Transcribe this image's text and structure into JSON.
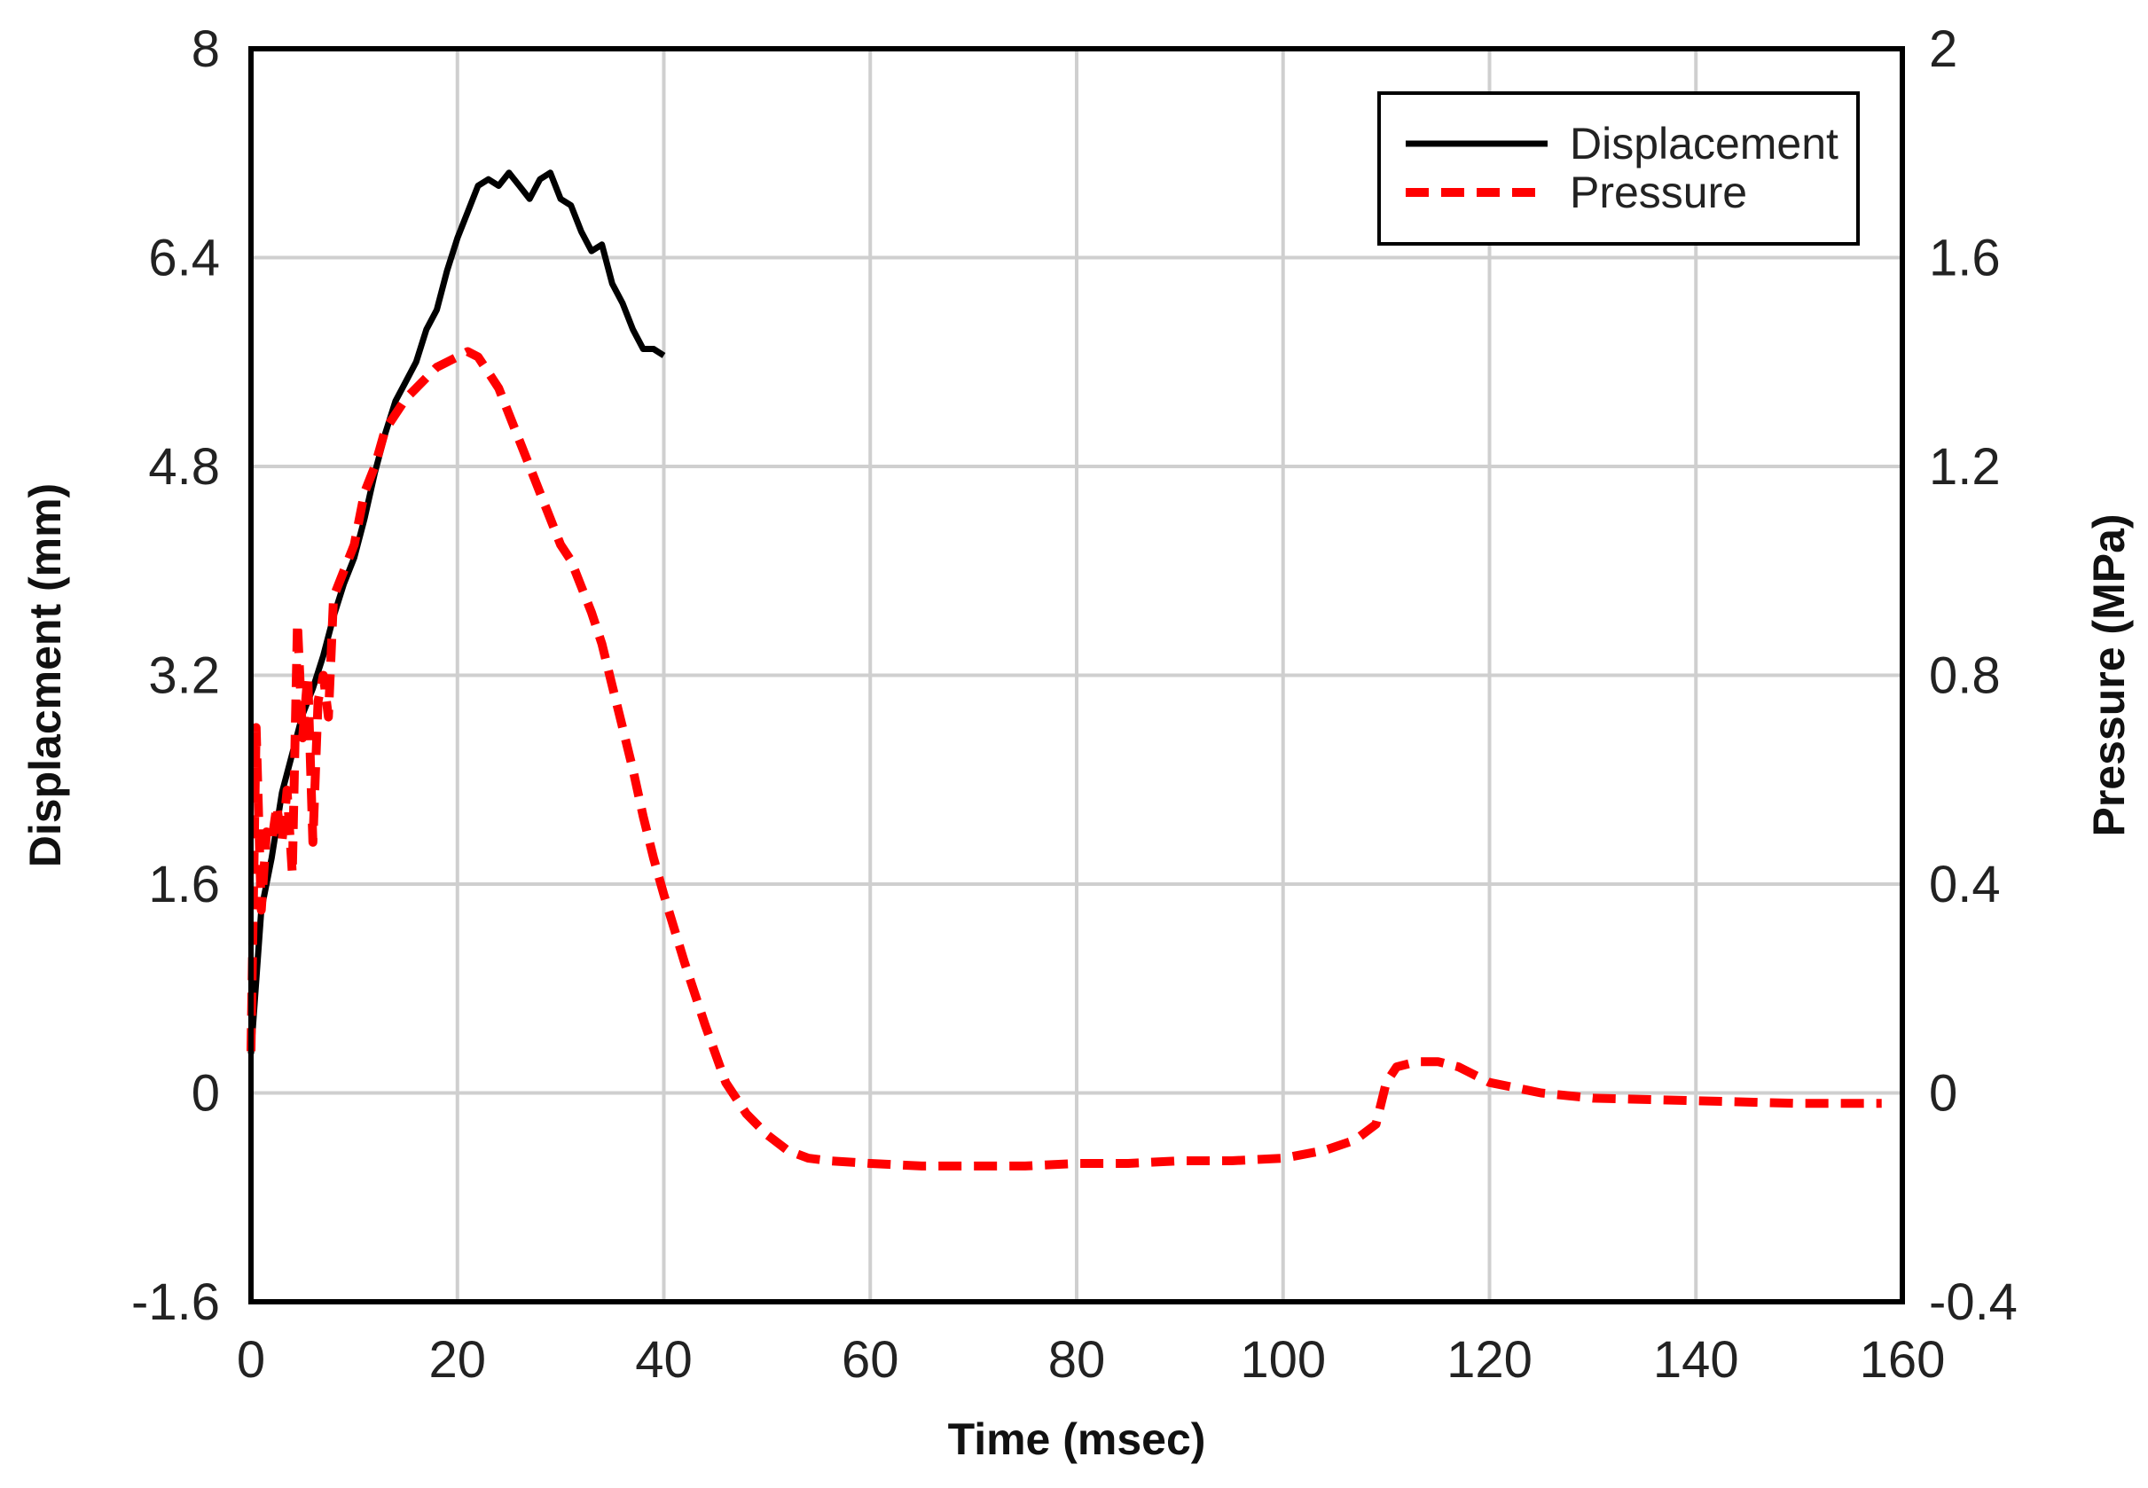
{
  "chart_data": {
    "type": "line",
    "title": "",
    "xlabel": "Time (msec)",
    "ylabel_left": "Displacment (mm)",
    "ylabel_right": "Pressure (MPa)",
    "xlim": [
      0,
      160
    ],
    "ylim_left": [
      -1.6,
      8
    ],
    "ylim_right": [
      -0.4,
      2
    ],
    "x_ticks": [
      "0",
      "20",
      "40",
      "60",
      "80",
      "100",
      "120",
      "140",
      "160"
    ],
    "y_left_ticks": [
      "-1.6",
      "0",
      "1.6",
      "3.2",
      "4.8",
      "6.4",
      "8"
    ],
    "y_right_ticks": [
      "-0.4",
      "0",
      "0.4",
      "0.8",
      "1.2",
      "1.6",
      "2"
    ],
    "grid": true,
    "legend_position": "top-right",
    "series": [
      {
        "name": "Displacement",
        "axis": "left",
        "color": "#000000",
        "style": "solid",
        "x": [
          0,
          1,
          2,
          3,
          4,
          5,
          6,
          7,
          8,
          9,
          10,
          11,
          12,
          13,
          14,
          15,
          16,
          17,
          18,
          19,
          20,
          21,
          22,
          23,
          24,
          25,
          26,
          27,
          28,
          29,
          30,
          31,
          32,
          33,
          34,
          35,
          36,
          37,
          38,
          39,
          40
        ],
        "values": [
          0.3,
          1.4,
          1.8,
          2.3,
          2.6,
          2.9,
          3.1,
          3.35,
          3.65,
          3.9,
          4.1,
          4.4,
          4.75,
          5.05,
          5.3,
          5.45,
          5.6,
          5.85,
          6.0,
          6.3,
          6.55,
          6.75,
          6.95,
          7.0,
          6.95,
          7.05,
          6.95,
          6.85,
          7.0,
          7.05,
          6.85,
          6.8,
          6.6,
          6.45,
          6.5,
          6.2,
          6.05,
          5.85,
          5.7,
          5.7,
          5.65
        ]
      },
      {
        "name": "Pressure",
        "axis": "right",
        "color": "#ff0000",
        "style": "dashed",
        "x": [
          0,
          0.5,
          1,
          1.5,
          2,
          2.5,
          3,
          3.5,
          4,
          4.5,
          5,
          5.5,
          6,
          6.5,
          7,
          7.5,
          8,
          9,
          10,
          11,
          12,
          13,
          14,
          15,
          16,
          17,
          18,
          19,
          20,
          21,
          22,
          23,
          24,
          25,
          26,
          27,
          28,
          29,
          30,
          31,
          32,
          33,
          34,
          35,
          36,
          37,
          38,
          39,
          40,
          42,
          44,
          46,
          48,
          50,
          52,
          54,
          56,
          60,
          65,
          70,
          75,
          80,
          85,
          90,
          95,
          100,
          104,
          107,
          109,
          110,
          111,
          113,
          115,
          117,
          120,
          125,
          130,
          140,
          150,
          158
        ],
        "values": [
          0.08,
          0.7,
          0.35,
          0.5,
          0.48,
          0.55,
          0.48,
          0.58,
          0.42,
          0.9,
          0.68,
          0.8,
          0.48,
          0.75,
          0.8,
          0.72,
          0.95,
          1.0,
          1.05,
          1.15,
          1.2,
          1.27,
          1.3,
          1.33,
          1.35,
          1.37,
          1.39,
          1.4,
          1.41,
          1.42,
          1.41,
          1.38,
          1.35,
          1.3,
          1.25,
          1.2,
          1.15,
          1.1,
          1.05,
          1.02,
          0.97,
          0.92,
          0.86,
          0.78,
          0.7,
          0.62,
          0.53,
          0.45,
          0.38,
          0.25,
          0.13,
          0.02,
          -0.04,
          -0.08,
          -0.11,
          -0.125,
          -0.13,
          -0.135,
          -0.14,
          -0.14,
          -0.14,
          -0.135,
          -0.135,
          -0.13,
          -0.13,
          -0.125,
          -0.11,
          -0.09,
          -0.06,
          0.02,
          0.05,
          0.06,
          0.06,
          0.05,
          0.02,
          0.0,
          -0.01,
          -0.015,
          -0.02,
          -0.02
        ]
      }
    ]
  }
}
